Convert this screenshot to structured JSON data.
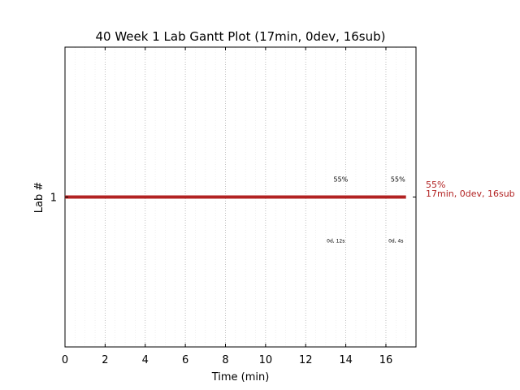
{
  "chart_data": {
    "type": "gantt",
    "title": "40 Week 1 Lab Gantt Plot (17min, 0dev, 16sub)",
    "xlabel": "Time (min)",
    "ylabel": "Lab #",
    "xlim": [
      0,
      17.5
    ],
    "ylim": [
      0,
      2
    ],
    "x_ticks": [
      0,
      2,
      4,
      6,
      8,
      10,
      12,
      14,
      16
    ],
    "x_tick_labels": [
      "0",
      "2",
      "4",
      "6",
      "8",
      "10",
      "12",
      "14",
      "16"
    ],
    "y_ticks": [
      1
    ],
    "y_tick_labels": [
      "1"
    ],
    "grid": true,
    "bar_color": "#b22222",
    "bars": [
      {
        "lab": 1,
        "start": 0,
        "end": 17,
        "color": "#b22222"
      }
    ],
    "annotations_above": [
      {
        "x": 13.75,
        "text": "55%"
      },
      {
        "x": 16.6,
        "text": "55%"
      }
    ],
    "annotations_below": [
      {
        "x": 13.5,
        "text": "0d, 12s"
      },
      {
        "x": 16.5,
        "text": "0d, 4s"
      }
    ],
    "side_label": {
      "lab": 1,
      "line1": "55%",
      "line2": "17min, 0dev, 16sub"
    }
  }
}
